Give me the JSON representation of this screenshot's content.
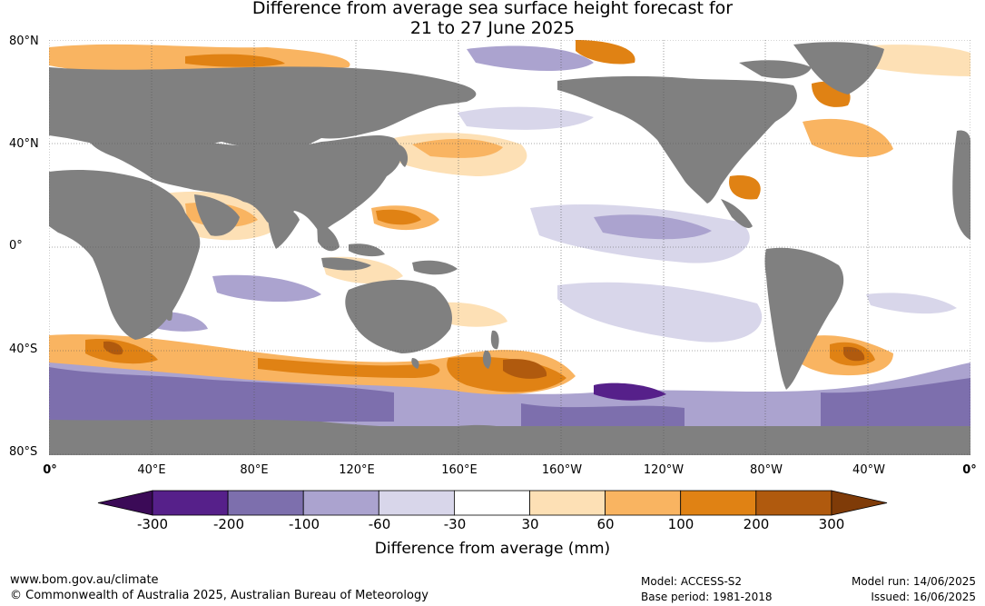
{
  "title": {
    "line1": "Difference from average sea surface height forecast for",
    "line2": "21 to 27 June 2025"
  },
  "axes": {
    "lat_ticks": [
      "80°N",
      "40°N",
      "0°",
      "40°S",
      "80°S"
    ],
    "lon_ticks": [
      "0°",
      "40°E",
      "80°E",
      "120°E",
      "160°E",
      "160°W",
      "120°W",
      "80°W",
      "40°W",
      "0°"
    ]
  },
  "colorbar": {
    "label": "Difference from average (mm)",
    "ticks": [
      "-300",
      "-200",
      "-100",
      "-60",
      "-30",
      "30",
      "60",
      "100",
      "200",
      "300"
    ],
    "colors": [
      "#3b0a57",
      "#56208a",
      "#7d6fad",
      "#aba3cf",
      "#d8d6ea",
      "#ffffff",
      "#fde0b5",
      "#f9b461",
      "#e08214",
      "#b05a0e",
      "#7f3b08"
    ]
  },
  "colors": {
    "land": "#808080",
    "ocean_neutral": "#ffffff"
  },
  "footer": {
    "website": "www.bom.gov.au/climate",
    "copyright": "© Commonwealth of Australia 2025, Australian Bureau of Meteorology",
    "model": "Model: ACCESS-S2",
    "base_period": "Base period: 1981-2018",
    "model_run": "Model run: 14/06/2025",
    "issued": "Issued: 16/06/2025"
  }
}
